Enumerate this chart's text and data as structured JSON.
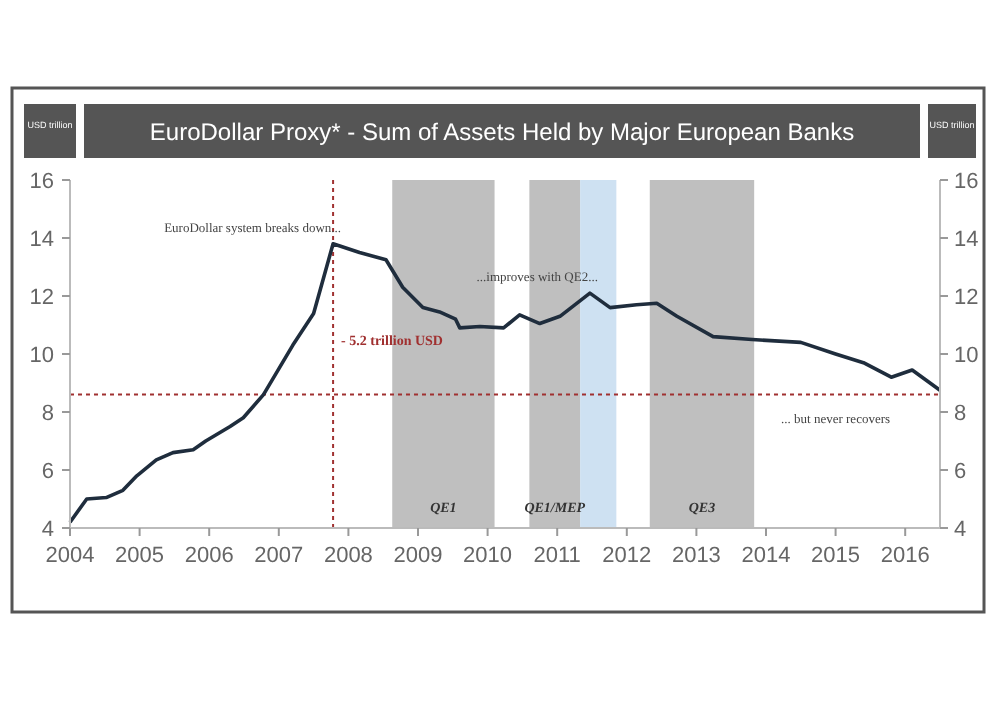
{
  "chart_data": {
    "type": "line",
    "title": "EuroDollar Proxy* - Sum of Assets Held by Major European Banks",
    "ylabel": "USD trillion",
    "y2label": "USD trillion",
    "x": [
      2004,
      2004.24,
      2004.52,
      2004.76,
      2004.96,
      2005.24,
      2005.48,
      2005.77,
      2005.95,
      2006.3,
      2006.49,
      2006.78,
      2007.2,
      2007.5,
      2007.78,
      2008.16,
      2008.54,
      2008.78,
      2009.07,
      2009.31,
      2009.54,
      2009.6,
      2009.89,
      2010.23,
      2010.46,
      2010.75,
      2011.04,
      2011.47,
      2011.76,
      2012.14,
      2012.43,
      2012.72,
      2013.24,
      2013.8,
      2014.5,
      2015,
      2015.4,
      2015.8,
      2016.1,
      2016.5
    ],
    "series": [
      {
        "color": "#1f2d3d",
        "values": [
          4.2,
          5.0,
          5.05,
          5.3,
          5.8,
          6.35,
          6.6,
          6.7,
          7.0,
          7.5,
          7.8,
          8.6,
          10.3,
          11.4,
          13.8,
          13.5,
          13.25,
          12.3,
          11.6,
          11.45,
          11.2,
          10.9,
          10.95,
          10.9,
          11.35,
          11.05,
          11.3,
          12.1,
          11.6,
          11.7,
          11.75,
          11.3,
          10.6,
          10.5,
          10.4,
          10.0,
          9.7,
          9.2,
          9.45,
          8.75
        ]
      }
    ],
    "xlim": [
      2004,
      2016.5
    ],
    "xticks": [
      2004,
      2005,
      2006,
      2007,
      2008,
      2009,
      2010,
      2011,
      2012,
      2013,
      2014,
      2015,
      2016
    ],
    "ylim": [
      4,
      16
    ],
    "yticks": [
      4,
      6,
      8,
      10,
      12,
      14,
      16
    ],
    "y2lim": [
      4,
      16
    ],
    "y2ticks": [
      4,
      6,
      8,
      10,
      12,
      14,
      16
    ],
    "marker": "none",
    "line_style": "solid",
    "bands": [
      {
        "axis": "x",
        "from": 2008.63,
        "to": 2010.1,
        "label": "QE1",
        "color": "#b4b4b4"
      },
      {
        "axis": "x",
        "from": 2010.6,
        "to": 2011.33,
        "label": "QE1/MEP",
        "color": "#b4b4b4"
      },
      {
        "axis": "x",
        "from": 2011.33,
        "to": 2011.85,
        "label": null,
        "color": "#c6dcf0"
      },
      {
        "axis": "x",
        "from": 2012.33,
        "to": 2013.83,
        "label": "QE3",
        "color": "#b4b4b4"
      }
    ],
    "ref_lines": [
      {
        "axis": "x",
        "value": 2007.78,
        "label": "- 5.2 trillion USD",
        "color": "#a03030",
        "line_style": "dotted"
      },
      {
        "axis": "y",
        "value": 8.6,
        "label": null,
        "color": "#a03030",
        "line_style": "dotted"
      }
    ],
    "annotations": [
      {
        "text": "EuroDollar system breaks down...",
        "x": 2007.78,
        "y": 13.8
      },
      {
        "text": "...improves with QE2...",
        "x": 2011.47,
        "y": 12.1
      },
      {
        "text": "... but never recovers",
        "x": 2015,
        "y": 8.6
      }
    ]
  }
}
